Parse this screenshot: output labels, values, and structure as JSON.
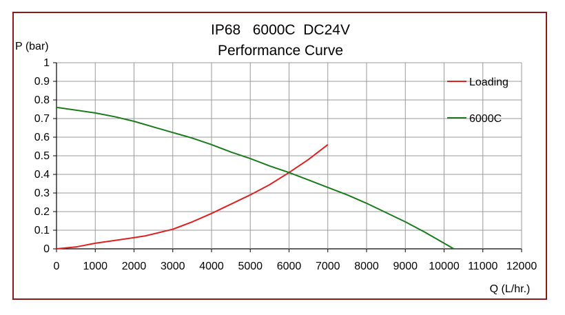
{
  "chart_data": {
    "type": "line",
    "title_line1": "IP68   6000C  DC24V",
    "title_line2": "Performance Curve",
    "ylabel": "P (bar)",
    "xlabel": "Q (L/hr.)",
    "xlim": [
      0,
      12000
    ],
    "ylim": [
      0,
      1
    ],
    "x_ticks": [
      "0",
      "1000",
      "2000",
      "3000",
      "4000",
      "5000",
      "6000",
      "7000",
      "8000",
      "9000",
      "10000",
      "11000",
      "12000"
    ],
    "y_ticks": [
      "0",
      "0.1",
      "0.2",
      "0.3",
      "0.4",
      "0.5",
      "0.6",
      "0.7",
      "0.8",
      "0.9",
      "1"
    ],
    "grid": true,
    "legend_position": "right",
    "series": [
      {
        "name": "Loading",
        "color": "#e02020",
        "points": [
          [
            0,
            0.0
          ],
          [
            500,
            0.01
          ],
          [
            1000,
            0.03
          ],
          [
            1500,
            0.045
          ],
          [
            2000,
            0.06
          ],
          [
            2300,
            0.07
          ],
          [
            3000,
            0.105
          ],
          [
            3500,
            0.145
          ],
          [
            4000,
            0.19
          ],
          [
            4500,
            0.24
          ],
          [
            5000,
            0.29
          ],
          [
            5500,
            0.345
          ],
          [
            6000,
            0.41
          ],
          [
            6500,
            0.48
          ],
          [
            7000,
            0.56
          ]
        ]
      },
      {
        "name": "6000C",
        "color": "#1a7a1a",
        "points": [
          [
            0,
            0.76
          ],
          [
            1000,
            0.73
          ],
          [
            1500,
            0.71
          ],
          [
            2000,
            0.685
          ],
          [
            2500,
            0.655
          ],
          [
            3000,
            0.625
          ],
          [
            3500,
            0.595
          ],
          [
            4000,
            0.56
          ],
          [
            4500,
            0.52
          ],
          [
            5000,
            0.485
          ],
          [
            5500,
            0.445
          ],
          [
            6000,
            0.41
          ],
          [
            6500,
            0.37
          ],
          [
            7000,
            0.33
          ],
          [
            7500,
            0.29
          ],
          [
            8000,
            0.245
          ],
          [
            8500,
            0.195
          ],
          [
            9000,
            0.145
          ],
          [
            9500,
            0.09
          ],
          [
            10000,
            0.03
          ],
          [
            10250,
            0.0
          ]
        ]
      }
    ]
  }
}
